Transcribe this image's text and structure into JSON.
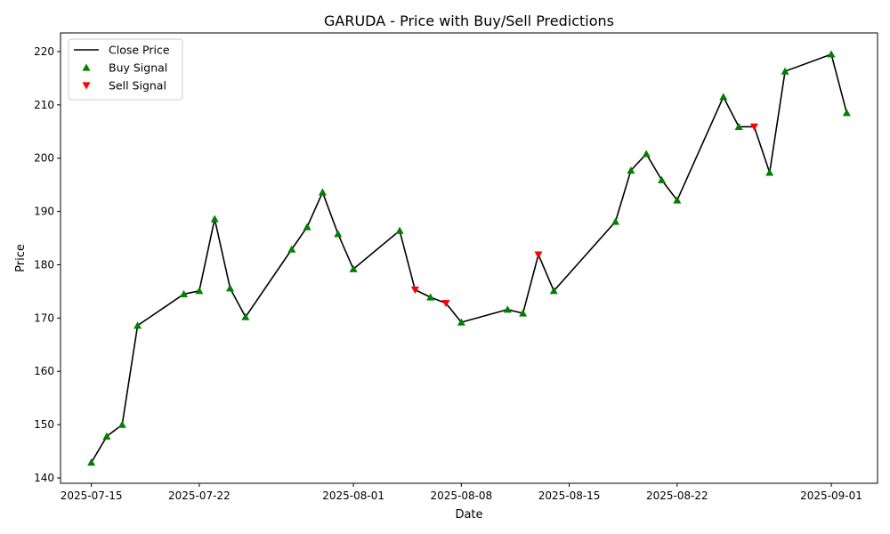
{
  "chart_data": {
    "type": "line",
    "title": "GARUDA - Price with Buy/Sell Predictions",
    "xlabel": "Date",
    "ylabel": "Price",
    "xlim": [
      "2025-07-13",
      "2025-09-04"
    ],
    "ylim": [
      139,
      223.5
    ],
    "x_ticks": [
      "2025-07-15",
      "2025-07-22",
      "2025-08-01",
      "2025-08-08",
      "2025-08-15",
      "2025-08-22",
      "2025-09-01"
    ],
    "y_ticks": [
      140,
      150,
      160,
      170,
      180,
      190,
      200,
      210,
      220
    ],
    "grid": false,
    "legend_position": "upper-left",
    "series": [
      {
        "name": "Close Price",
        "kind": "line",
        "color": "#000000",
        "points": [
          {
            "x": "2025-07-15",
            "y": 142.9
          },
          {
            "x": "2025-07-16",
            "y": 147.8
          },
          {
            "x": "2025-07-17",
            "y": 150.0
          },
          {
            "x": "2025-07-18",
            "y": 168.6
          },
          {
            "x": "2025-07-21",
            "y": 174.5
          },
          {
            "x": "2025-07-22",
            "y": 175.1
          },
          {
            "x": "2025-07-23",
            "y": 188.6
          },
          {
            "x": "2025-07-24",
            "y": 175.6
          },
          {
            "x": "2025-07-25",
            "y": 170.2
          },
          {
            "x": "2025-07-28",
            "y": 182.9
          },
          {
            "x": "2025-07-29",
            "y": 187.1
          },
          {
            "x": "2025-07-30",
            "y": 193.6
          },
          {
            "x": "2025-07-31",
            "y": 185.8
          },
          {
            "x": "2025-08-01",
            "y": 179.2
          },
          {
            "x": "2025-08-04",
            "y": 186.4
          },
          {
            "x": "2025-08-05",
            "y": 175.3
          },
          {
            "x": "2025-08-06",
            "y": 173.9
          },
          {
            "x": "2025-08-07",
            "y": 172.8
          },
          {
            "x": "2025-08-08",
            "y": 169.2
          },
          {
            "x": "2025-08-11",
            "y": 171.6
          },
          {
            "x": "2025-08-12",
            "y": 170.9
          },
          {
            "x": "2025-08-13",
            "y": 181.9
          },
          {
            "x": "2025-08-14",
            "y": 175.1
          },
          {
            "x": "2025-08-18",
            "y": 188.1
          },
          {
            "x": "2025-08-19",
            "y": 197.7
          },
          {
            "x": "2025-08-20",
            "y": 200.8
          },
          {
            "x": "2025-08-21",
            "y": 195.9
          },
          {
            "x": "2025-08-22",
            "y": 192.1
          },
          {
            "x": "2025-08-25",
            "y": 211.5
          },
          {
            "x": "2025-08-26",
            "y": 205.9
          },
          {
            "x": "2025-08-27",
            "y": 205.9
          },
          {
            "x": "2025-08-28",
            "y": 197.3
          },
          {
            "x": "2025-08-29",
            "y": 216.3
          },
          {
            "x": "2025-09-01",
            "y": 219.5
          },
          {
            "x": "2025-09-02",
            "y": 208.5
          }
        ]
      },
      {
        "name": "Buy Signal",
        "kind": "scatter",
        "marker": "triangle-up",
        "color": "#008000",
        "points": [
          {
            "x": "2025-07-15",
            "y": 142.9
          },
          {
            "x": "2025-07-16",
            "y": 147.8
          },
          {
            "x": "2025-07-17",
            "y": 150.0
          },
          {
            "x": "2025-07-18",
            "y": 168.6
          },
          {
            "x": "2025-07-21",
            "y": 174.5
          },
          {
            "x": "2025-07-22",
            "y": 175.1
          },
          {
            "x": "2025-07-23",
            "y": 188.6
          },
          {
            "x": "2025-07-24",
            "y": 175.6
          },
          {
            "x": "2025-07-25",
            "y": 170.2
          },
          {
            "x": "2025-07-28",
            "y": 182.9
          },
          {
            "x": "2025-07-29",
            "y": 187.1
          },
          {
            "x": "2025-07-30",
            "y": 193.6
          },
          {
            "x": "2025-07-31",
            "y": 185.8
          },
          {
            "x": "2025-08-01",
            "y": 179.2
          },
          {
            "x": "2025-08-04",
            "y": 186.4
          },
          {
            "x": "2025-08-06",
            "y": 173.9
          },
          {
            "x": "2025-08-08",
            "y": 169.2
          },
          {
            "x": "2025-08-11",
            "y": 171.6
          },
          {
            "x": "2025-08-12",
            "y": 170.9
          },
          {
            "x": "2025-08-14",
            "y": 175.1
          },
          {
            "x": "2025-08-18",
            "y": 188.1
          },
          {
            "x": "2025-08-19",
            "y": 197.7
          },
          {
            "x": "2025-08-20",
            "y": 200.8
          },
          {
            "x": "2025-08-21",
            "y": 195.9
          },
          {
            "x": "2025-08-22",
            "y": 192.1
          },
          {
            "x": "2025-08-25",
            "y": 211.5
          },
          {
            "x": "2025-08-26",
            "y": 205.9
          },
          {
            "x": "2025-08-28",
            "y": 197.3
          },
          {
            "x": "2025-08-29",
            "y": 216.3
          },
          {
            "x": "2025-09-01",
            "y": 219.5
          },
          {
            "x": "2025-09-02",
            "y": 208.5
          }
        ]
      },
      {
        "name": "Sell Signal",
        "kind": "scatter",
        "marker": "triangle-down",
        "color": "#ff0000",
        "points": [
          {
            "x": "2025-08-05",
            "y": 175.3
          },
          {
            "x": "2025-08-07",
            "y": 172.8
          },
          {
            "x": "2025-08-13",
            "y": 181.9
          },
          {
            "x": "2025-08-27",
            "y": 205.9
          }
        ]
      }
    ]
  }
}
